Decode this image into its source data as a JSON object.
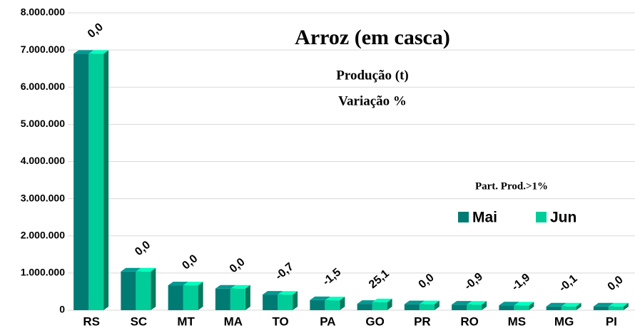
{
  "chart_data": {
    "type": "bar3d",
    "title": "Arroz (em casca)",
    "subtitle": "Produção (t)",
    "subtitle2": "Variação %",
    "legend_title": "Part. Prod.>1%",
    "categories": [
      "RS",
      "SC",
      "MT",
      "MA",
      "TO",
      "PA",
      "GO",
      "PR",
      "RO",
      "MS",
      "MG",
      "PI"
    ],
    "series": [
      {
        "name": "Mai",
        "color": "#007b74",
        "values": [
          6900000,
          1040000,
          670000,
          580000,
          420000,
          270000,
          170000,
          160000,
          150000,
          130000,
          100000,
          100000
        ]
      },
      {
        "name": "Jun",
        "color": "#00cc99",
        "values": [
          6900000,
          1040000,
          670000,
          580000,
          417000,
          266000,
          213000,
          160000,
          149000,
          128000,
          100000,
          100000
        ]
      }
    ],
    "annotations": [
      "0,0",
      "0,0",
      "0,0",
      "0,0",
      "-0,7",
      "-1,5",
      "25,1",
      "0,0",
      "-0,9",
      "-1,9",
      "-0,1",
      "0,0"
    ],
    "ylim": [
      0,
      8000000
    ],
    "yticks": [
      {
        "value": 0,
        "label": "0"
      },
      {
        "value": 1000000,
        "label": "1.000.000"
      },
      {
        "value": 2000000,
        "label": "2.000.000"
      },
      {
        "value": 3000000,
        "label": "3.000.000"
      },
      {
        "value": 4000000,
        "label": "4.000.000"
      },
      {
        "value": 5000000,
        "label": "5.000.000"
      },
      {
        "value": 6000000,
        "label": "6.000.000"
      },
      {
        "value": 7000000,
        "label": "7.000.000"
      },
      {
        "value": 8000000,
        "label": "8.000.000"
      }
    ],
    "grid": true
  }
}
